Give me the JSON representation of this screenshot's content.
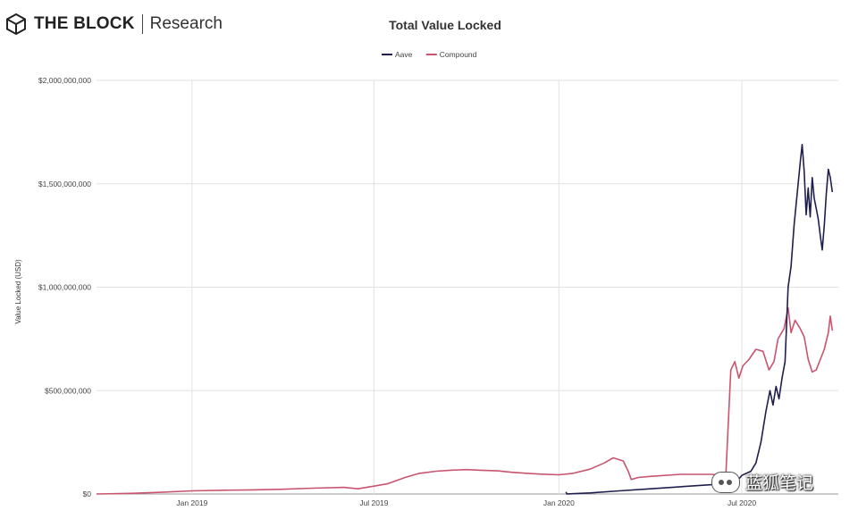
{
  "header": {
    "brand": "THE BLOCK",
    "sub": "Research",
    "logo_icon": "hexagon-cube-icon"
  },
  "watermark": {
    "text": "蓝狐笔记",
    "icon": "wechat-icon"
  },
  "chart_data": {
    "type": "line",
    "title": "Total Value Locked",
    "ylabel": "Value Locked (USD)",
    "xlabel": "",
    "x_ticks": [
      "Jan 2019",
      "Jul 2019",
      "Jan 2020",
      "Jul 2020"
    ],
    "x_tick_dates": [
      "2019-01-01",
      "2019-07-01",
      "2020-01-01",
      "2020-07-01"
    ],
    "xlim": [
      "2018-09-28",
      "2020-10-05"
    ],
    "y_ticks": [
      "$0",
      "$500,000,000",
      "$1,000,000,000",
      "$1,500,000,000",
      "$2,000,000,000"
    ],
    "y_tick_values": [
      0,
      500000000,
      1000000000,
      1500000000,
      2000000000
    ],
    "ylim": [
      0,
      2000000000
    ],
    "grid": true,
    "legend_position": "top-center",
    "series": [
      {
        "name": "Aave",
        "color": "#1f1f4d",
        "points": [
          [
            "2020-01-08",
            10000000
          ],
          [
            "2020-01-09",
            0
          ],
          [
            "2020-02-01",
            5000000
          ],
          [
            "2020-03-01",
            15000000
          ],
          [
            "2020-04-01",
            25000000
          ],
          [
            "2020-05-01",
            35000000
          ],
          [
            "2020-06-01",
            45000000
          ],
          [
            "2020-06-25",
            55000000
          ],
          [
            "2020-07-01",
            90000000
          ],
          [
            "2020-07-10",
            110000000
          ],
          [
            "2020-07-15",
            150000000
          ],
          [
            "2020-07-20",
            250000000
          ],
          [
            "2020-07-25",
            400000000
          ],
          [
            "2020-07-29",
            500000000
          ],
          [
            "2020-08-01",
            430000000
          ],
          [
            "2020-08-04",
            520000000
          ],
          [
            "2020-08-07",
            460000000
          ],
          [
            "2020-08-10",
            560000000
          ],
          [
            "2020-08-13",
            640000000
          ],
          [
            "2020-08-16",
            1000000000
          ],
          [
            "2020-08-19",
            1100000000
          ],
          [
            "2020-08-22",
            1300000000
          ],
          [
            "2020-08-25",
            1450000000
          ],
          [
            "2020-08-28",
            1600000000
          ],
          [
            "2020-08-30",
            1690000000
          ],
          [
            "2020-09-01",
            1560000000
          ],
          [
            "2020-09-03",
            1350000000
          ],
          [
            "2020-09-05",
            1480000000
          ],
          [
            "2020-09-07",
            1340000000
          ],
          [
            "2020-09-09",
            1530000000
          ],
          [
            "2020-09-11",
            1430000000
          ],
          [
            "2020-09-13",
            1380000000
          ],
          [
            "2020-09-15",
            1330000000
          ],
          [
            "2020-09-17",
            1250000000
          ],
          [
            "2020-09-19",
            1180000000
          ],
          [
            "2020-09-21",
            1300000000
          ],
          [
            "2020-09-23",
            1450000000
          ],
          [
            "2020-09-25",
            1570000000
          ],
          [
            "2020-09-27",
            1530000000
          ],
          [
            "2020-09-29",
            1460000000
          ]
        ]
      },
      {
        "name": "Compound",
        "color": "#c9546e",
        "points": [
          [
            "2018-09-28",
            0
          ],
          [
            "2018-11-01",
            3000000
          ],
          [
            "2018-12-01",
            8000000
          ],
          [
            "2019-01-01",
            15000000
          ],
          [
            "2019-02-01",
            18000000
          ],
          [
            "2019-03-01",
            20000000
          ],
          [
            "2019-04-01",
            23000000
          ],
          [
            "2019-05-01",
            28000000
          ],
          [
            "2019-06-01",
            32000000
          ],
          [
            "2019-06-15",
            25000000
          ],
          [
            "2019-07-01",
            38000000
          ],
          [
            "2019-07-15",
            50000000
          ],
          [
            "2019-08-01",
            80000000
          ],
          [
            "2019-08-15",
            100000000
          ],
          [
            "2019-09-01",
            110000000
          ],
          [
            "2019-09-15",
            115000000
          ],
          [
            "2019-10-01",
            118000000
          ],
          [
            "2019-10-15",
            115000000
          ],
          [
            "2019-11-01",
            112000000
          ],
          [
            "2019-11-15",
            105000000
          ],
          [
            "2019-12-01",
            100000000
          ],
          [
            "2019-12-15",
            96000000
          ],
          [
            "2020-01-01",
            93000000
          ],
          [
            "2020-01-15",
            100000000
          ],
          [
            "2020-02-01",
            120000000
          ],
          [
            "2020-02-15",
            150000000
          ],
          [
            "2020-02-24",
            175000000
          ],
          [
            "2020-03-05",
            160000000
          ],
          [
            "2020-03-10",
            110000000
          ],
          [
            "2020-03-13",
            70000000
          ],
          [
            "2020-03-20",
            80000000
          ],
          [
            "2020-04-01",
            85000000
          ],
          [
            "2020-05-01",
            95000000
          ],
          [
            "2020-06-01",
            95000000
          ],
          [
            "2020-06-12",
            90000000
          ],
          [
            "2020-06-15",
            80000000
          ],
          [
            "2020-06-18",
            390000000
          ],
          [
            "2020-06-20",
            600000000
          ],
          [
            "2020-06-24",
            640000000
          ],
          [
            "2020-06-28",
            560000000
          ],
          [
            "2020-07-02",
            620000000
          ],
          [
            "2020-07-08",
            650000000
          ],
          [
            "2020-07-15",
            700000000
          ],
          [
            "2020-07-22",
            690000000
          ],
          [
            "2020-07-28",
            600000000
          ],
          [
            "2020-08-02",
            640000000
          ],
          [
            "2020-08-06",
            750000000
          ],
          [
            "2020-08-12",
            800000000
          ],
          [
            "2020-08-16",
            900000000
          ],
          [
            "2020-08-19",
            780000000
          ],
          [
            "2020-08-23",
            840000000
          ],
          [
            "2020-08-28",
            800000000
          ],
          [
            "2020-09-01",
            760000000
          ],
          [
            "2020-09-05",
            650000000
          ],
          [
            "2020-09-09",
            590000000
          ],
          [
            "2020-09-13",
            600000000
          ],
          [
            "2020-09-17",
            650000000
          ],
          [
            "2020-09-21",
            700000000
          ],
          [
            "2020-09-25",
            780000000
          ],
          [
            "2020-09-27",
            860000000
          ],
          [
            "2020-09-29",
            790000000
          ]
        ]
      }
    ]
  }
}
